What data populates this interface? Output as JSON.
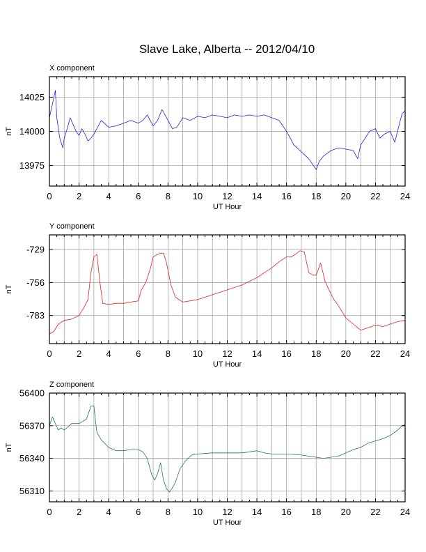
{
  "title": "Slave Lake, Alberta -- 2012/04/10",
  "chart_data": [
    {
      "type": "line",
      "title": "X component",
      "xlabel": "UT Hour",
      "ylabel": "nT",
      "xlim": [
        0,
        24
      ],
      "ylim": [
        13960,
        14040
      ],
      "grid": true,
      "color": "#1f1fe6",
      "xticks": [
        "0",
        "2",
        "4",
        "6",
        "8",
        "10",
        "12",
        "14",
        "16",
        "18",
        "20",
        "22",
        "24"
      ],
      "yticks": [
        {
          "v": 13975,
          "label": "13975"
        },
        {
          "v": 14000,
          "label": "14000"
        },
        {
          "v": 14025,
          "label": "14025"
        }
      ],
      "series": [
        {
          "x": [
            0,
            0.2,
            0.4,
            0.5,
            0.7,
            0.9,
            1.0,
            1.2,
            1.4,
            1.6,
            1.8,
            2.0,
            2.2,
            2.4,
            2.6,
            2.8,
            3.0,
            3.2,
            3.5,
            3.8,
            4.0,
            4.5,
            5.0,
            5.5,
            6.0,
            6.3,
            6.6,
            7.0,
            7.3,
            7.6,
            7.8,
            8.0,
            8.3,
            8.6,
            9.0,
            9.5,
            10.0,
            10.5,
            11.0,
            11.5,
            12.0,
            12.5,
            13.0,
            13.5,
            14.0,
            14.5,
            15.0,
            15.5,
            16.0,
            16.5,
            17.0,
            17.5,
            18.0,
            18.2,
            18.5,
            19.0,
            19.5,
            20.0,
            20.5,
            20.8,
            21.0,
            21.3,
            21.6,
            22.0,
            22.3,
            22.6,
            23.0,
            23.3,
            23.6,
            23.8,
            24.0
          ],
          "y": [
            14010,
            14020,
            14030,
            14010,
            13995,
            13988,
            13995,
            14002,
            14010,
            14005,
            14000,
            13997,
            14002,
            13998,
            13993,
            13995,
            13998,
            14002,
            14008,
            14005,
            14003,
            14004,
            14006,
            14008,
            14006,
            14008,
            14012,
            14004,
            14008,
            14016,
            14012,
            14008,
            14002,
            14003,
            14010,
            14008,
            14011,
            14010,
            14012,
            14011,
            14010,
            14012,
            14011,
            14012,
            14011,
            14012,
            14010,
            14008,
            14000,
            13990,
            13985,
            13980,
            13972,
            13978,
            13982,
            13986,
            13988,
            13987,
            13986,
            13980,
            13990,
            13995,
            14000,
            14002,
            13995,
            13998,
            14000,
            13992,
            14005,
            14013,
            14015
          ]
        }
      ]
    },
    {
      "type": "line",
      "title": "Y component",
      "xlabel": "UT Hour",
      "ylabel": "nT",
      "xlim": [
        0,
        24
      ],
      "ylim": [
        -806,
        -717
      ],
      "grid": true,
      "color": "#e61f1f",
      "xticks": [
        "0",
        "2",
        "4",
        "6",
        "8",
        "10",
        "12",
        "14",
        "16",
        "18",
        "20",
        "22",
        "24"
      ],
      "yticks": [
        {
          "v": -729,
          "label": "-729"
        },
        {
          "v": -756,
          "label": "-756"
        },
        {
          "v": -783,
          "label": "-783"
        }
      ],
      "series": [
        {
          "x": [
            0,
            0.3,
            0.6,
            1.0,
            1.5,
            2.0,
            2.3,
            2.6,
            2.8,
            3.0,
            3.2,
            3.4,
            3.6,
            4.0,
            4.5,
            5.0,
            5.5,
            6.0,
            6.2,
            6.5,
            6.8,
            7.0,
            7.3,
            7.5,
            7.7,
            7.9,
            8.2,
            8.5,
            9.0,
            9.5,
            10.0,
            10.5,
            11.0,
            11.5,
            12.0,
            12.5,
            13.0,
            13.5,
            14.0,
            14.5,
            15.0,
            15.5,
            16.0,
            16.3,
            16.6,
            16.9,
            17.2,
            17.5,
            17.8,
            18.0,
            18.3,
            18.6,
            18.9,
            19.2,
            19.5,
            20.0,
            20.5,
            21.0,
            21.5,
            22.0,
            22.5,
            23.0,
            23.5,
            24.0
          ],
          "y": [
            -798,
            -796,
            -790,
            -787,
            -786,
            -783,
            -777,
            -770,
            -748,
            -735,
            -733,
            -755,
            -773,
            -774,
            -773,
            -773,
            -772,
            -771,
            -762,
            -756,
            -745,
            -735,
            -733,
            -732,
            -732,
            -740,
            -758,
            -768,
            -772,
            -771,
            -770,
            -768,
            -766,
            -764,
            -762,
            -760,
            -758,
            -755,
            -752,
            -748,
            -744,
            -739,
            -735,
            -735,
            -733,
            -730,
            -731,
            -748,
            -750,
            -750,
            -740,
            -755,
            -763,
            -770,
            -775,
            -785,
            -790,
            -795,
            -793,
            -791,
            -792,
            -790,
            -788,
            -787
          ]
        }
      ]
    },
    {
      "type": "line",
      "title": "Z component",
      "xlabel": "UT Hour",
      "ylabel": "nT",
      "xlim": [
        0,
        24
      ],
      "ylim": [
        56300,
        56400
      ],
      "grid": true,
      "color": "#1f7a4a",
      "xticks": [
        "0",
        "2",
        "4",
        "6",
        "8",
        "10",
        "12",
        "14",
        "16",
        "18",
        "20",
        "22",
        "24"
      ],
      "yticks": [
        {
          "v": 56310,
          "label": "56310"
        },
        {
          "v": 56340,
          "label": "56340"
        },
        {
          "v": 56370,
          "label": "56370"
        },
        {
          "v": 56400,
          "label": "56400"
        }
      ],
      "series": [
        {
          "x": [
            0,
            0.2,
            0.4,
            0.6,
            0.8,
            1.0,
            1.5,
            2.0,
            2.5,
            2.8,
            3.0,
            3.2,
            3.5,
            4.0,
            4.5,
            5.0,
            5.5,
            6.0,
            6.3,
            6.6,
            6.9,
            7.1,
            7.3,
            7.5,
            7.7,
            7.9,
            8.1,
            8.3,
            8.5,
            8.8,
            9.2,
            9.6,
            10.0,
            11.0,
            12.0,
            13.0,
            14.0,
            14.5,
            15.0,
            16.0,
            17.0,
            17.5,
            18.0,
            18.5,
            19.0,
            19.5,
            20.0,
            20.5,
            21.0,
            21.5,
            22.0,
            22.5,
            23.0,
            23.5,
            23.8,
            24.0
          ],
          "y": [
            56370,
            56378,
            56372,
            56366,
            56368,
            56366,
            56372,
            56372,
            56376,
            56388,
            56388,
            56364,
            56357,
            56350,
            56347,
            56347,
            56348,
            56348,
            56346,
            56340,
            56325,
            56320,
            56326,
            56336,
            56320,
            56312,
            56309,
            56313,
            56318,
            56330,
            56338,
            56343,
            56344,
            56345,
            56345,
            56345,
            56347,
            56345,
            56344,
            56344,
            56343,
            56342,
            56341,
            56340,
            56341,
            56342,
            56345,
            56348,
            56350,
            56354,
            56356,
            56358,
            56361,
            56366,
            56370,
            56371
          ]
        }
      ]
    }
  ]
}
